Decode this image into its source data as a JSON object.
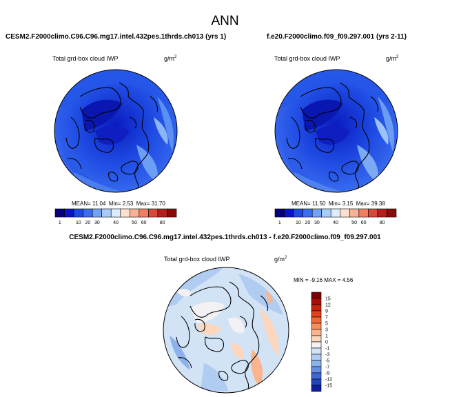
{
  "title": "ANN",
  "panels": {
    "left": {
      "case": "CESM2.F2000climo.C96.C96.mg17.intel.432pes.1thrds.ch013 (yrs 1)",
      "variable": "Total grd-box cloud IWP",
      "units": "g/m",
      "units_sup": "2",
      "mean_label": "MEAN=",
      "mean": "11.04",
      "min_label": "Min=",
      "min": "2.53",
      "max_label": "Max=",
      "max": "31.70"
    },
    "right": {
      "case": "f.e20.F2000climo.f09_f09.297.001 (yrs 2-11)",
      "variable": "Total grd-box cloud IWP",
      "units": "g/m",
      "units_sup": "2",
      "mean_label": "MEAN=",
      "mean": "11.50",
      "min_label": "Min=",
      "min": "3.15",
      "max_label": "Max=",
      "max": "39.38"
    },
    "diff": {
      "case": "CESM2.F2000climo.C96.C96.mg17.intel.432pes.1thrds.ch013 - f.e20.F2000climo.f09_f09.297.001",
      "variable": "Total grd-box cloud IWP",
      "units": "g/m",
      "units_sup": "2",
      "minmax": "MIN = -9.16 MAX =  4.56"
    }
  },
  "chart_data": [
    {
      "type": "heatmap",
      "projection": "polar stereographic (North Pole)",
      "title": "Total grd-box cloud IWP",
      "units": "g/m2",
      "stats": {
        "mean": 11.04,
        "min": 2.53,
        "max": 31.7
      },
      "colorbar": {
        "orientation": "horizontal",
        "ticks": [
          "1",
          "10",
          "20",
          "30",
          "40",
          "50",
          "60",
          "80"
        ],
        "colors": [
          "#06007a",
          "#0a14c6",
          "#1e4ae2",
          "#3a6ef2",
          "#72a2f6",
          "#a8cbfa",
          "#deecfd",
          "#fde0cf",
          "#f8b196",
          "#ef7f5e",
          "#d8483a",
          "#b51f1b",
          "#8a0c08"
        ]
      }
    },
    {
      "type": "heatmap",
      "projection": "polar stereographic (North Pole)",
      "title": "Total grd-box cloud IWP",
      "units": "g/m2",
      "stats": {
        "mean": 11.5,
        "min": 3.15,
        "max": 39.38
      },
      "colorbar": {
        "orientation": "horizontal",
        "ticks": [
          "1",
          "10",
          "20",
          "30",
          "40",
          "50",
          "60",
          "80"
        ],
        "colors": [
          "#06007a",
          "#0a14c6",
          "#1e4ae2",
          "#3a6ef2",
          "#72a2f6",
          "#a8cbfa",
          "#deecfd",
          "#fde0cf",
          "#f8b196",
          "#ef7f5e",
          "#d8483a",
          "#b51f1b",
          "#8a0c08"
        ]
      }
    },
    {
      "type": "heatmap",
      "projection": "polar stereographic (North Pole)",
      "title": "Total grd-box cloud IWP",
      "units": "g/m2",
      "stats": {
        "min": -9.16,
        "max": 4.56
      },
      "colorbar": {
        "orientation": "vertical",
        "ticks": [
          "15",
          "12",
          "9",
          "7",
          "5",
          "3",
          "1",
          "0",
          "-1",
          "-3",
          "-5",
          "-7",
          "-9",
          "-12",
          "-15"
        ],
        "colors": [
          "#7b0000",
          "#a80c06",
          "#c8240c",
          "#e0421a",
          "#f06836",
          "#f78e5c",
          "#fbb58e",
          "#fcd6bd",
          "#f3f1f3",
          "#d3e3f6",
          "#b0ccf1",
          "#8cb2ec",
          "#6690e0",
          "#4068d2",
          "#2444bc",
          "#0d1f9e"
        ]
      }
    }
  ]
}
